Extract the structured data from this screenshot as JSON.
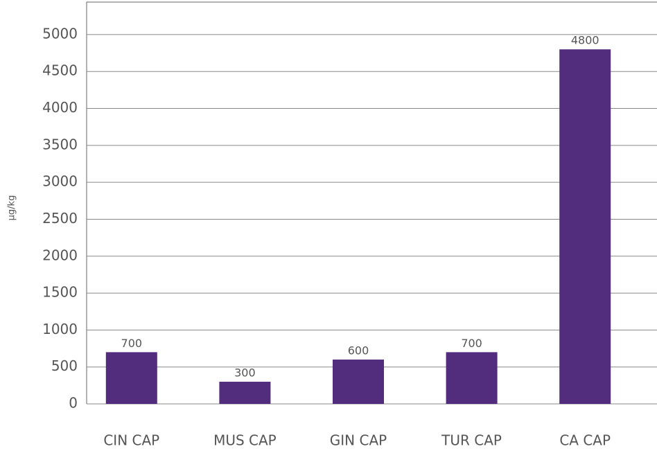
{
  "chart_data": {
    "type": "bar",
    "y_label": "µg/kg",
    "categories": [
      "CIN CAP",
      "MUS CAP",
      "GIN CAP",
      "TUR CAP",
      "CA CAP"
    ],
    "values": [
      700,
      300,
      600,
      700,
      4800
    ],
    "color": "#522d7d",
    "ylim": [
      0,
      5440
    ],
    "yticks": [
      0,
      500,
      1000,
      1500,
      2000,
      2500,
      3000,
      3500,
      4000,
      4500,
      5000
    ],
    "grid": true
  }
}
